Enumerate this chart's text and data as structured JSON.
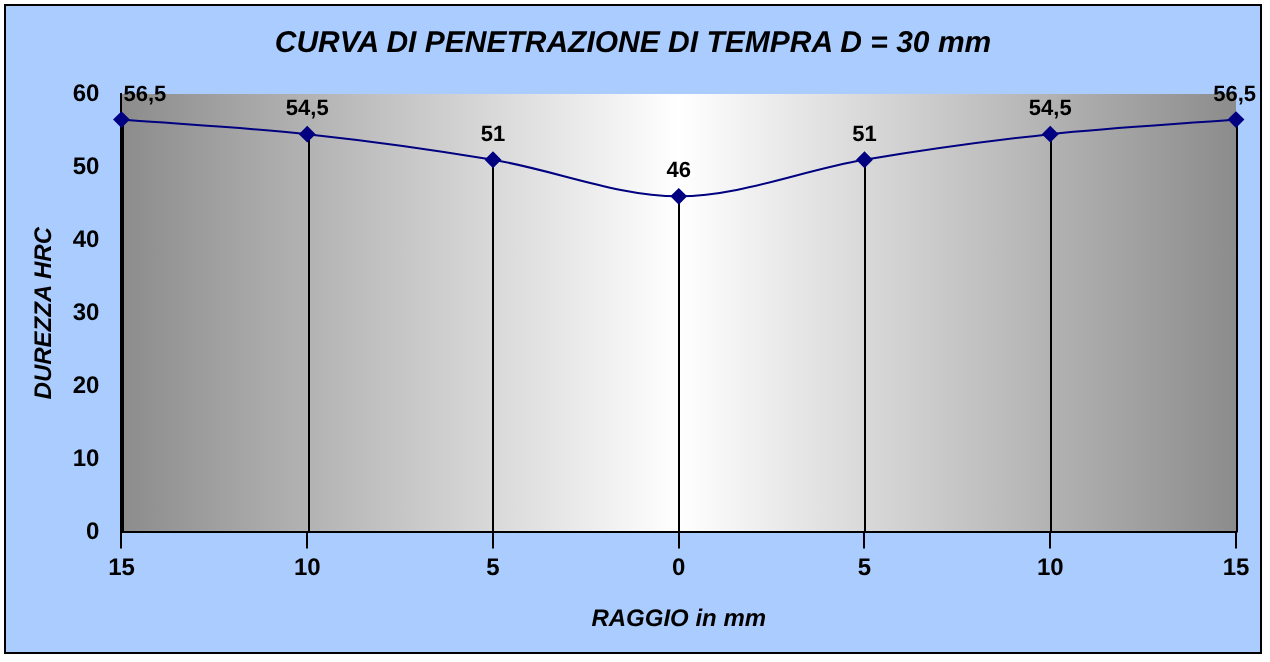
{
  "chart_data": {
    "type": "line",
    "title": "CURVA DI PENETRAZIONE DI TEMPRA D = 30 mm",
    "xlabel": "RAGGIO in mm",
    "ylabel": "DUREZZA HRC",
    "categories": [
      "15",
      "10",
      "5",
      "0",
      "5",
      "10",
      "15"
    ],
    "series": [
      {
        "color": "#000080",
        "values": [
          56.5,
          54.5,
          51,
          46,
          51,
          54.5,
          56.5
        ],
        "value_labels": [
          "56,5",
          "54,5",
          "51",
          "46",
          "51",
          "54,5",
          "56,5"
        ]
      }
    ],
    "ylim": [
      0,
      60
    ],
    "yticks": [
      0,
      10,
      20,
      30,
      40,
      50,
      60
    ],
    "grid": "x",
    "legend": false,
    "marker": "diamond",
    "line_style": "solid"
  }
}
